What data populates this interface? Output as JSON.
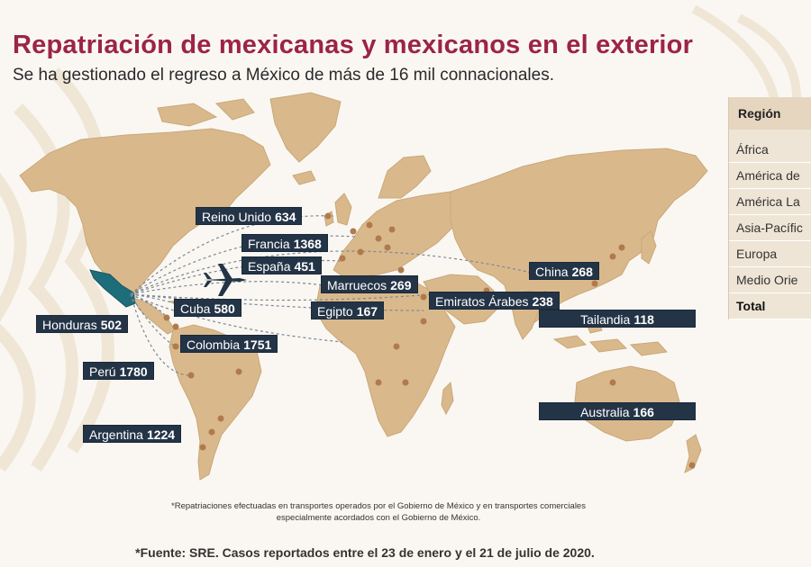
{
  "title": "Repatriación de mexicanas y mexicanos en el exterior",
  "subtitle": "Se ha gestionado el regreso a México de más de 16 mil connacionales.",
  "colors": {
    "title": "#9c2446",
    "land": "#d9b98c",
    "mexico": "#1d6e7a",
    "label_bg": "#243447",
    "dot": "#b07a4d"
  },
  "labels": [
    {
      "name": "Reino Unido",
      "value": "634"
    },
    {
      "name": "Francia",
      "value": "1368"
    },
    {
      "name": "España",
      "value": "451"
    },
    {
      "name": "Marruecos",
      "value": "269"
    },
    {
      "name": "Cuba",
      "value": "580"
    },
    {
      "name": "Honduras",
      "value": "502"
    },
    {
      "name": "Egipto",
      "value": "167"
    },
    {
      "name": "Emiratos Árabes",
      "value": "238"
    },
    {
      "name": "China",
      "value": "268"
    },
    {
      "name": "Tailandia",
      "value": "118"
    },
    {
      "name": "Colombia",
      "value": "1751"
    },
    {
      "name": "Perú",
      "value": "1780"
    },
    {
      "name": "Argentina",
      "value": "1224"
    },
    {
      "name": "Australia",
      "value": "166"
    }
  ],
  "table": {
    "header": "Región",
    "rows": [
      "África",
      "América de",
      "América La",
      "Asia-Pacífic",
      "Europa",
      "Medio Orie"
    ],
    "total": "Total"
  },
  "footnote_line1": "*Repatriaciones efectuadas en transportes operados por el Gobierno de México y en transportes comerciales",
  "footnote_line2": "especialmente acordados con el Gobierno de México.",
  "source": "*Fuente: SRE. Casos reportados entre el 23 de enero y el 21 de julio de 2020."
}
